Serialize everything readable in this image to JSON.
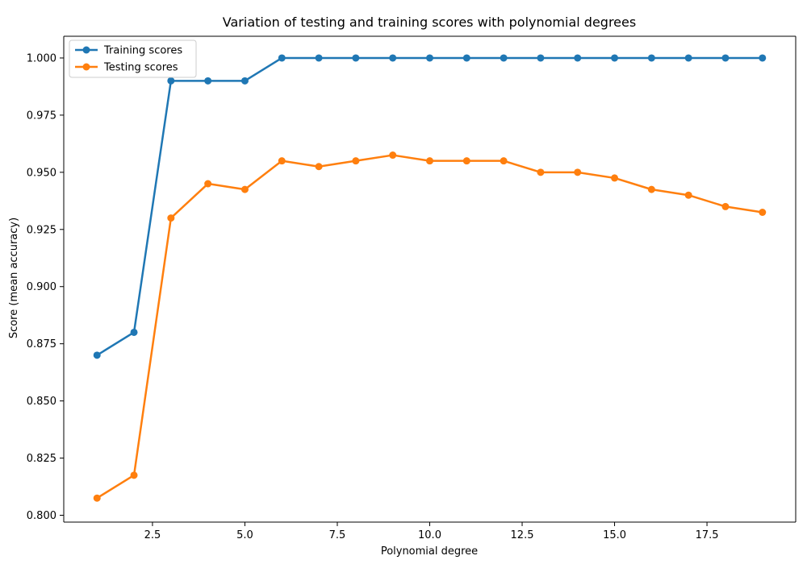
{
  "chart_data": {
    "type": "line",
    "title": "Variation of testing and training scores with polynomial degrees",
    "xlabel": "Polynomial degree",
    "ylabel": "Score (mean accuracy)",
    "xlim": [
      0.1,
      19.9
    ],
    "ylim": [
      0.797,
      1.0095
    ],
    "x_ticks": [
      2.5,
      5.0,
      7.5,
      10.0,
      12.5,
      15.0,
      17.5
    ],
    "x_tick_labels": [
      "2.5",
      "5.0",
      "7.5",
      "10.0",
      "12.5",
      "15.0",
      "17.5"
    ],
    "y_ticks": [
      0.8,
      0.825,
      0.85,
      0.875,
      0.9,
      0.925,
      0.95,
      0.975,
      1.0
    ],
    "y_tick_labels": [
      "0.800",
      "0.825",
      "0.850",
      "0.875",
      "0.900",
      "0.925",
      "0.950",
      "0.975",
      "1.000"
    ],
    "grid": false,
    "legend_position": "top-left",
    "x": [
      1,
      2,
      3,
      4,
      5,
      6,
      7,
      8,
      9,
      10,
      11,
      12,
      13,
      14,
      15,
      16,
      17,
      18,
      19
    ],
    "series": [
      {
        "name": "Training scores",
        "color": "#1f77b4",
        "marker": "circle",
        "values": [
          0.87,
          0.88,
          0.99,
          0.99,
          0.99,
          1.0,
          1.0,
          1.0,
          1.0,
          1.0,
          1.0,
          1.0,
          1.0,
          1.0,
          1.0,
          1.0,
          1.0,
          1.0,
          1.0
        ]
      },
      {
        "name": "Testing scores",
        "color": "#ff7f0e",
        "marker": "circle",
        "values": [
          0.8075,
          0.8175,
          0.93,
          0.945,
          0.9425,
          0.955,
          0.9525,
          0.955,
          0.9575,
          0.955,
          0.955,
          0.955,
          0.95,
          0.95,
          0.9475,
          0.9425,
          0.94,
          0.935,
          0.9325
        ]
      }
    ]
  }
}
